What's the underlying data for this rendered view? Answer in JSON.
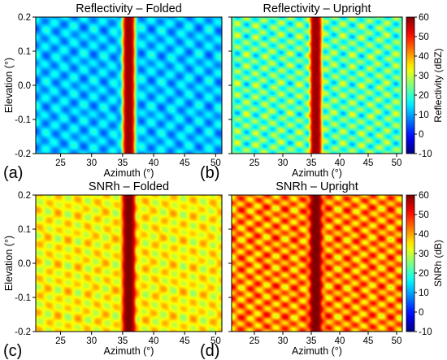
{
  "chart_data": [
    {
      "type": "heatmap",
      "panel_label": "(a)",
      "title": "Reflectivity – Folded",
      "xlabel": "Azimuth (°)",
      "ylabel": "Elevation (°)",
      "xlim": [
        21,
        51
      ],
      "ylim": [
        -0.2,
        0.2
      ],
      "xticks": [
        25,
        30,
        35,
        40,
        45,
        50
      ],
      "yticks": [
        -0.2,
        -0.1,
        0.0,
        0.1,
        0.2
      ],
      "colorbar": null,
      "field": {
        "background": 12,
        "beam_azimuth": 36,
        "beam_peak": 58,
        "ripple": 6,
        "lobe_spacing": 0.05
      }
    },
    {
      "type": "heatmap",
      "panel_label": "(b)",
      "title": "Reflectivity – Upright",
      "xlabel": "Azimuth (°)",
      "ylabel": "",
      "xlim": [
        21,
        51
      ],
      "ylim": [
        -0.2,
        0.2
      ],
      "xticks": [
        25,
        30,
        35,
        40,
        45,
        50
      ],
      "yticks": [
        -0.2,
        -0.1,
        0.0,
        0.1,
        0.2
      ],
      "colorbar": {
        "label": "Reflectivity (dBZ)",
        "min": -10,
        "max": 60,
        "ticks": [
          -10,
          0,
          10,
          20,
          30,
          40,
          50,
          60
        ]
      },
      "field": {
        "background": 22,
        "beam_azimuth": 35.8,
        "beam_peak": 58,
        "ripple": 9,
        "lobe_spacing": 0.035
      }
    },
    {
      "type": "heatmap",
      "panel_label": "(c)",
      "title": "SNRh – Folded",
      "xlabel": "Azimuth (°)",
      "ylabel": "Elevation (°)",
      "xlim": [
        21,
        51
      ],
      "ylim": [
        -0.2,
        0.2
      ],
      "xticks": [
        25,
        30,
        35,
        40,
        45,
        50
      ],
      "yticks": [
        -0.2,
        -0.1,
        0.0,
        0.1,
        0.2
      ],
      "colorbar": null,
      "field": {
        "background": 34,
        "beam_azimuth": 36,
        "beam_peak": 60,
        "ripple": 6,
        "lobe_spacing": 0.05
      }
    },
    {
      "type": "heatmap",
      "panel_label": "(d)",
      "title": "SNRh – Upright",
      "xlabel": "Azimuth (°)",
      "ylabel": "",
      "xlim": [
        21,
        51
      ],
      "ylim": [
        -0.2,
        0.2
      ],
      "xticks": [
        25,
        30,
        35,
        40,
        45,
        50
      ],
      "yticks": [
        -0.2,
        -0.1,
        0.0,
        0.1,
        0.2
      ],
      "colorbar": {
        "label": "SNRh (dB)",
        "min": -10,
        "max": 60,
        "ticks": [
          -10,
          0,
          10,
          20,
          30,
          40,
          50,
          60
        ]
      },
      "field": {
        "background": 42,
        "beam_azimuth": 35.8,
        "beam_peak": 60,
        "ripple": 9,
        "lobe_spacing": 0.035
      }
    }
  ],
  "colormap": "jet"
}
